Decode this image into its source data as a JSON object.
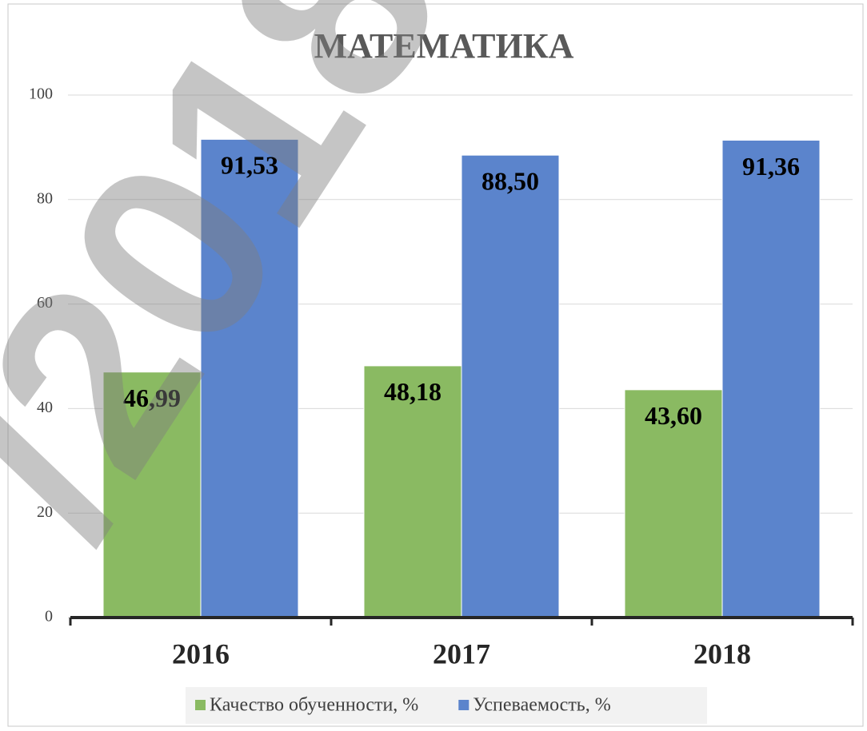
{
  "chart_data": {
    "type": "bar",
    "title": "МАТЕМАТИКА",
    "categories": [
      "2016",
      "2017",
      "2018"
    ],
    "series": [
      {
        "name": "Качество обученности, %",
        "color": "#8aba62",
        "values": [
          46.99,
          48.18,
          43.6
        ],
        "value_labels": [
          "46,99",
          "48,18",
          "43,60"
        ]
      },
      {
        "name": "Успеваемость, %",
        "color": "#5b84cc",
        "values": [
          91.53,
          88.5,
          91.36
        ],
        "value_labels": [
          "91,53",
          "88,50",
          "91,36"
        ]
      }
    ],
    "ylim": [
      0,
      100
    ],
    "yticks": [
      0,
      20,
      40,
      60,
      80,
      100
    ],
    "grid": true,
    "legend": "bottom",
    "watermark": "/2018"
  }
}
